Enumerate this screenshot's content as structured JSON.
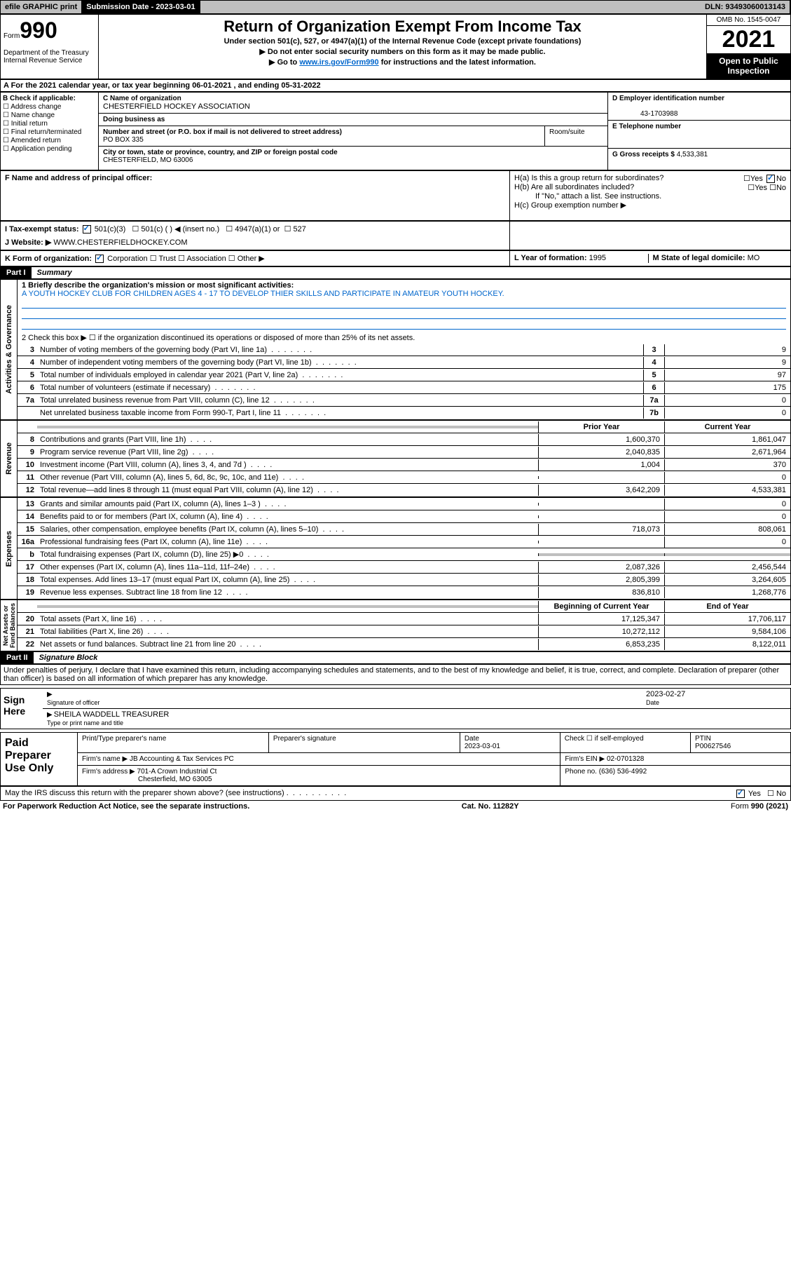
{
  "top": {
    "efile": "efile GRAPHIC print",
    "submit_label": "Submission Date - 2023-03-01",
    "dln": "DLN: 93493060013143"
  },
  "header": {
    "form_small": "Form",
    "form_num": "990",
    "title": "Return of Organization Exempt From Income Tax",
    "sub1": "Under section 501(c), 527, or 4947(a)(1) of the Internal Revenue Code (except private foundations)",
    "sub2": "▶ Do not enter social security numbers on this form as it may be made public.",
    "sub3_pre": "▶ Go to ",
    "sub3_link": "www.irs.gov/Form990",
    "sub3_post": " for instructions and the latest information.",
    "dept": "Department of the Treasury\nInternal Revenue Service",
    "omb": "OMB No. 1545-0047",
    "year": "2021",
    "open": "Open to Public Inspection"
  },
  "rowA": "A For the 2021 calendar year, or tax year beginning 06-01-2021    , and ending 05-31-2022",
  "blockB": {
    "label": "B Check if applicable:",
    "items": [
      "Address change",
      "Name change",
      "Initial return",
      "Final return/terminated",
      "Amended return",
      "Application pending"
    ]
  },
  "blockC": {
    "name_label": "C Name of organization",
    "name": "CHESTERFIELD HOCKEY ASSOCIATION",
    "dba_label": "Doing business as",
    "dba": "",
    "street_label": "Number and street (or P.O. box if mail is not delivered to street address)",
    "room_label": "Room/suite",
    "street": "PO BOX 335",
    "city_label": "City or town, state or province, country, and ZIP or foreign postal code",
    "city": "CHESTERFIELD, MO  63006"
  },
  "blockD": {
    "ein_label": "D Employer identification number",
    "ein": "43-1703988",
    "phone_label": "E Telephone number",
    "phone": "",
    "gross_label": "G Gross receipts $",
    "gross": "4,533,381"
  },
  "blockF": {
    "label": "F Name and address of principal officer:",
    "val": ""
  },
  "blockH": {
    "a": "H(a)  Is this a group return for subordinates?",
    "a_yes": "Yes",
    "a_no": "No",
    "b": "H(b)  Are all subordinates included?",
    "b_note": "If \"No,\" attach a list. See instructions.",
    "c": "H(c)  Group exemption number ▶"
  },
  "rowI": {
    "label": "I    Tax-exempt status:",
    "opt1": "501(c)(3)",
    "opt2": "501(c) (   ) ◀ (insert no.)",
    "opt3": "4947(a)(1) or",
    "opt4": "527"
  },
  "rowJ": {
    "label": "J   Website: ▶",
    "val": "WWW.CHESTERFIELDHOCKEY.COM"
  },
  "rowK": {
    "label": "K Form of organization:",
    "opts": [
      "Corporation",
      "Trust",
      "Association",
      "Other ▶"
    ]
  },
  "rowL": {
    "label": "L Year of formation:",
    "val": "1995"
  },
  "rowM": {
    "label": "M State of legal domicile:",
    "val": "MO"
  },
  "part1": {
    "hdr": "Part I",
    "title": "Summary",
    "line1_label": "1   Briefly describe the organization's mission or most significant activities:",
    "line1_val": "A YOUTH HOCKEY CLUB FOR CHILDREN AGES 4 - 17 TO DEVELOP THIER SKILLS AND PARTICIPATE IN AMATEUR YOUTH HOCKEY.",
    "line2": "2   Check this box ▶ ☐  if the organization discontinued its operations or disposed of more than 25% of its net assets.",
    "lines_gov": [
      {
        "n": "3",
        "d": "Number of voting members of the governing body (Part VI, line 1a)",
        "box": "3",
        "v": "9"
      },
      {
        "n": "4",
        "d": "Number of independent voting members of the governing body (Part VI, line 1b)",
        "box": "4",
        "v": "9"
      },
      {
        "n": "5",
        "d": "Total number of individuals employed in calendar year 2021 (Part V, line 2a)",
        "box": "5",
        "v": "97"
      },
      {
        "n": "6",
        "d": "Total number of volunteers (estimate if necessary)",
        "box": "6",
        "v": "175"
      },
      {
        "n": "7a",
        "d": "Total unrelated business revenue from Part VIII, column (C), line 12",
        "box": "7a",
        "v": "0"
      },
      {
        "n": "",
        "d": "Net unrelated business taxable income from Form 990-T, Part I, line 11",
        "box": "7b",
        "v": "0"
      }
    ],
    "col_prior": "Prior Year",
    "col_curr": "Current Year",
    "lines_rev": [
      {
        "n": "8",
        "d": "Contributions and grants (Part VIII, line 1h)",
        "p": "1,600,370",
        "c": "1,861,047"
      },
      {
        "n": "9",
        "d": "Program service revenue (Part VIII, line 2g)",
        "p": "2,040,835",
        "c": "2,671,964"
      },
      {
        "n": "10",
        "d": "Investment income (Part VIII, column (A), lines 3, 4, and 7d )",
        "p": "1,004",
        "c": "370"
      },
      {
        "n": "11",
        "d": "Other revenue (Part VIII, column (A), lines 5, 6d, 8c, 9c, 10c, and 11e)",
        "p": "",
        "c": "0"
      },
      {
        "n": "12",
        "d": "Total revenue—add lines 8 through 11 (must equal Part VIII, column (A), line 12)",
        "p": "3,642,209",
        "c": "4,533,381"
      }
    ],
    "lines_exp": [
      {
        "n": "13",
        "d": "Grants and similar amounts paid (Part IX, column (A), lines 1–3 )",
        "p": "",
        "c": "0"
      },
      {
        "n": "14",
        "d": "Benefits paid to or for members (Part IX, column (A), line 4)",
        "p": "",
        "c": "0"
      },
      {
        "n": "15",
        "d": "Salaries, other compensation, employee benefits (Part IX, column (A), lines 5–10)",
        "p": "718,073",
        "c": "808,061"
      },
      {
        "n": "16a",
        "d": "Professional fundraising fees (Part IX, column (A), line 11e)",
        "p": "",
        "c": "0"
      },
      {
        "n": "b",
        "d": "Total fundraising expenses (Part IX, column (D), line 25) ▶0",
        "p": "",
        "c": "",
        "gray": true
      },
      {
        "n": "17",
        "d": "Other expenses (Part IX, column (A), lines 11a–11d, 11f–24e)",
        "p": "2,087,326",
        "c": "2,456,544"
      },
      {
        "n": "18",
        "d": "Total expenses. Add lines 13–17 (must equal Part IX, column (A), line 25)",
        "p": "2,805,399",
        "c": "3,264,605"
      },
      {
        "n": "19",
        "d": "Revenue less expenses. Subtract line 18 from line 12",
        "p": "836,810",
        "c": "1,268,776"
      }
    ],
    "col_begin": "Beginning of Current Year",
    "col_end": "End of Year",
    "lines_net": [
      {
        "n": "20",
        "d": "Total assets (Part X, line 16)",
        "p": "17,125,347",
        "c": "17,706,117"
      },
      {
        "n": "21",
        "d": "Total liabilities (Part X, line 26)",
        "p": "10,272,112",
        "c": "9,584,106"
      },
      {
        "n": "22",
        "d": "Net assets or fund balances. Subtract line 21 from line 20",
        "p": "6,853,235",
        "c": "8,122,011"
      }
    ],
    "vlabels": {
      "gov": "Activities & Governance",
      "rev": "Revenue",
      "exp": "Expenses",
      "net": "Net Assets or\nFund Balances"
    }
  },
  "part2": {
    "hdr": "Part II",
    "title": "Signature Block",
    "decl": "Under penalties of perjury, I declare that I have examined this return, including accompanying schedules and statements, and to the best of my knowledge and belief, it is true, correct, and complete. Declaration of preparer (other than officer) is based on all information of which preparer has any knowledge.",
    "sign_here": "Sign Here",
    "sig_officer": "Signature of officer",
    "sig_date": "2023-02-27",
    "date_lbl": "Date",
    "name_title": "SHEILA WADDELL  TREASURER",
    "name_lbl": "Type or print name and title",
    "paid": "Paid Preparer Use Only",
    "prep_name_lbl": "Print/Type preparer's name",
    "prep_sig_lbl": "Preparer's signature",
    "prep_date_lbl": "Date",
    "prep_date": "2023-03-01",
    "prep_check": "Check ☐ if self-employed",
    "ptin_lbl": "PTIN",
    "ptin": "P00627546",
    "firm_name_lbl": "Firm's name    ▶",
    "firm_name": "JB Accounting & Tax Services PC",
    "firm_ein_lbl": "Firm's EIN ▶",
    "firm_ein": "02-0701328",
    "firm_addr_lbl": "Firm's address ▶",
    "firm_addr1": "701-A Crown Industrial Ct",
    "firm_addr2": "Chesterfield, MO  63005",
    "phone_lbl": "Phone no.",
    "phone": "(636) 536-4992",
    "discuss": "May the IRS discuss this return with the preparer shown above? (see instructions)",
    "yes": "Yes",
    "no": "No"
  },
  "footer": {
    "left": "For Paperwork Reduction Act Notice, see the separate instructions.",
    "mid": "Cat. No. 11282Y",
    "right": "Form 990 (2021)"
  },
  "colors": {
    "link": "#0066cc",
    "black": "#000000",
    "gray": "#bfbfbf",
    "white": "#ffffff"
  }
}
